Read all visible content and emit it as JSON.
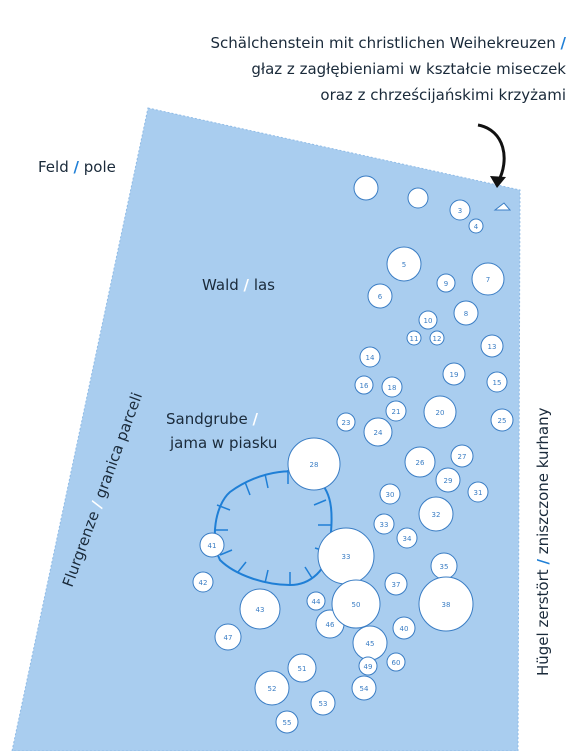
{
  "labels": {
    "separator": "/",
    "stone": {
      "de": "Schälchenstein mit christlichen Weihekreuzen",
      "pl": [
        "głaz z zagłębieniami w kształcie miseczek",
        "oraz z chrześcijańskimi krzyżami"
      ]
    },
    "field": {
      "de": "Feld",
      "pl": "pole"
    },
    "forest": {
      "de": "Wald",
      "pl": "las"
    },
    "sandpit": {
      "de": "Sandgrube",
      "pl": "jama w piasku"
    },
    "boundary": {
      "de": "Flurgrenze",
      "pl": "granica parceli"
    },
    "destroyed": {
      "de": "Hügel zerstört",
      "pl": "zniszczone kurhany"
    }
  },
  "mounds": [
    "3",
    "4",
    "5",
    "6",
    "7",
    "8",
    "9",
    "10",
    "11",
    "12",
    "13",
    "14",
    "15",
    "16",
    "18",
    "19",
    "20",
    "21",
    "23",
    "24",
    "25",
    "26",
    "27",
    "28",
    "29",
    "30",
    "31",
    "32",
    "33",
    "34",
    "35",
    "37",
    "38",
    "33",
    "40",
    "41",
    "42",
    "43",
    "44",
    "45",
    "46",
    "47",
    "49",
    "50",
    "51",
    "52",
    "53",
    "54",
    "55",
    "60"
  ]
}
